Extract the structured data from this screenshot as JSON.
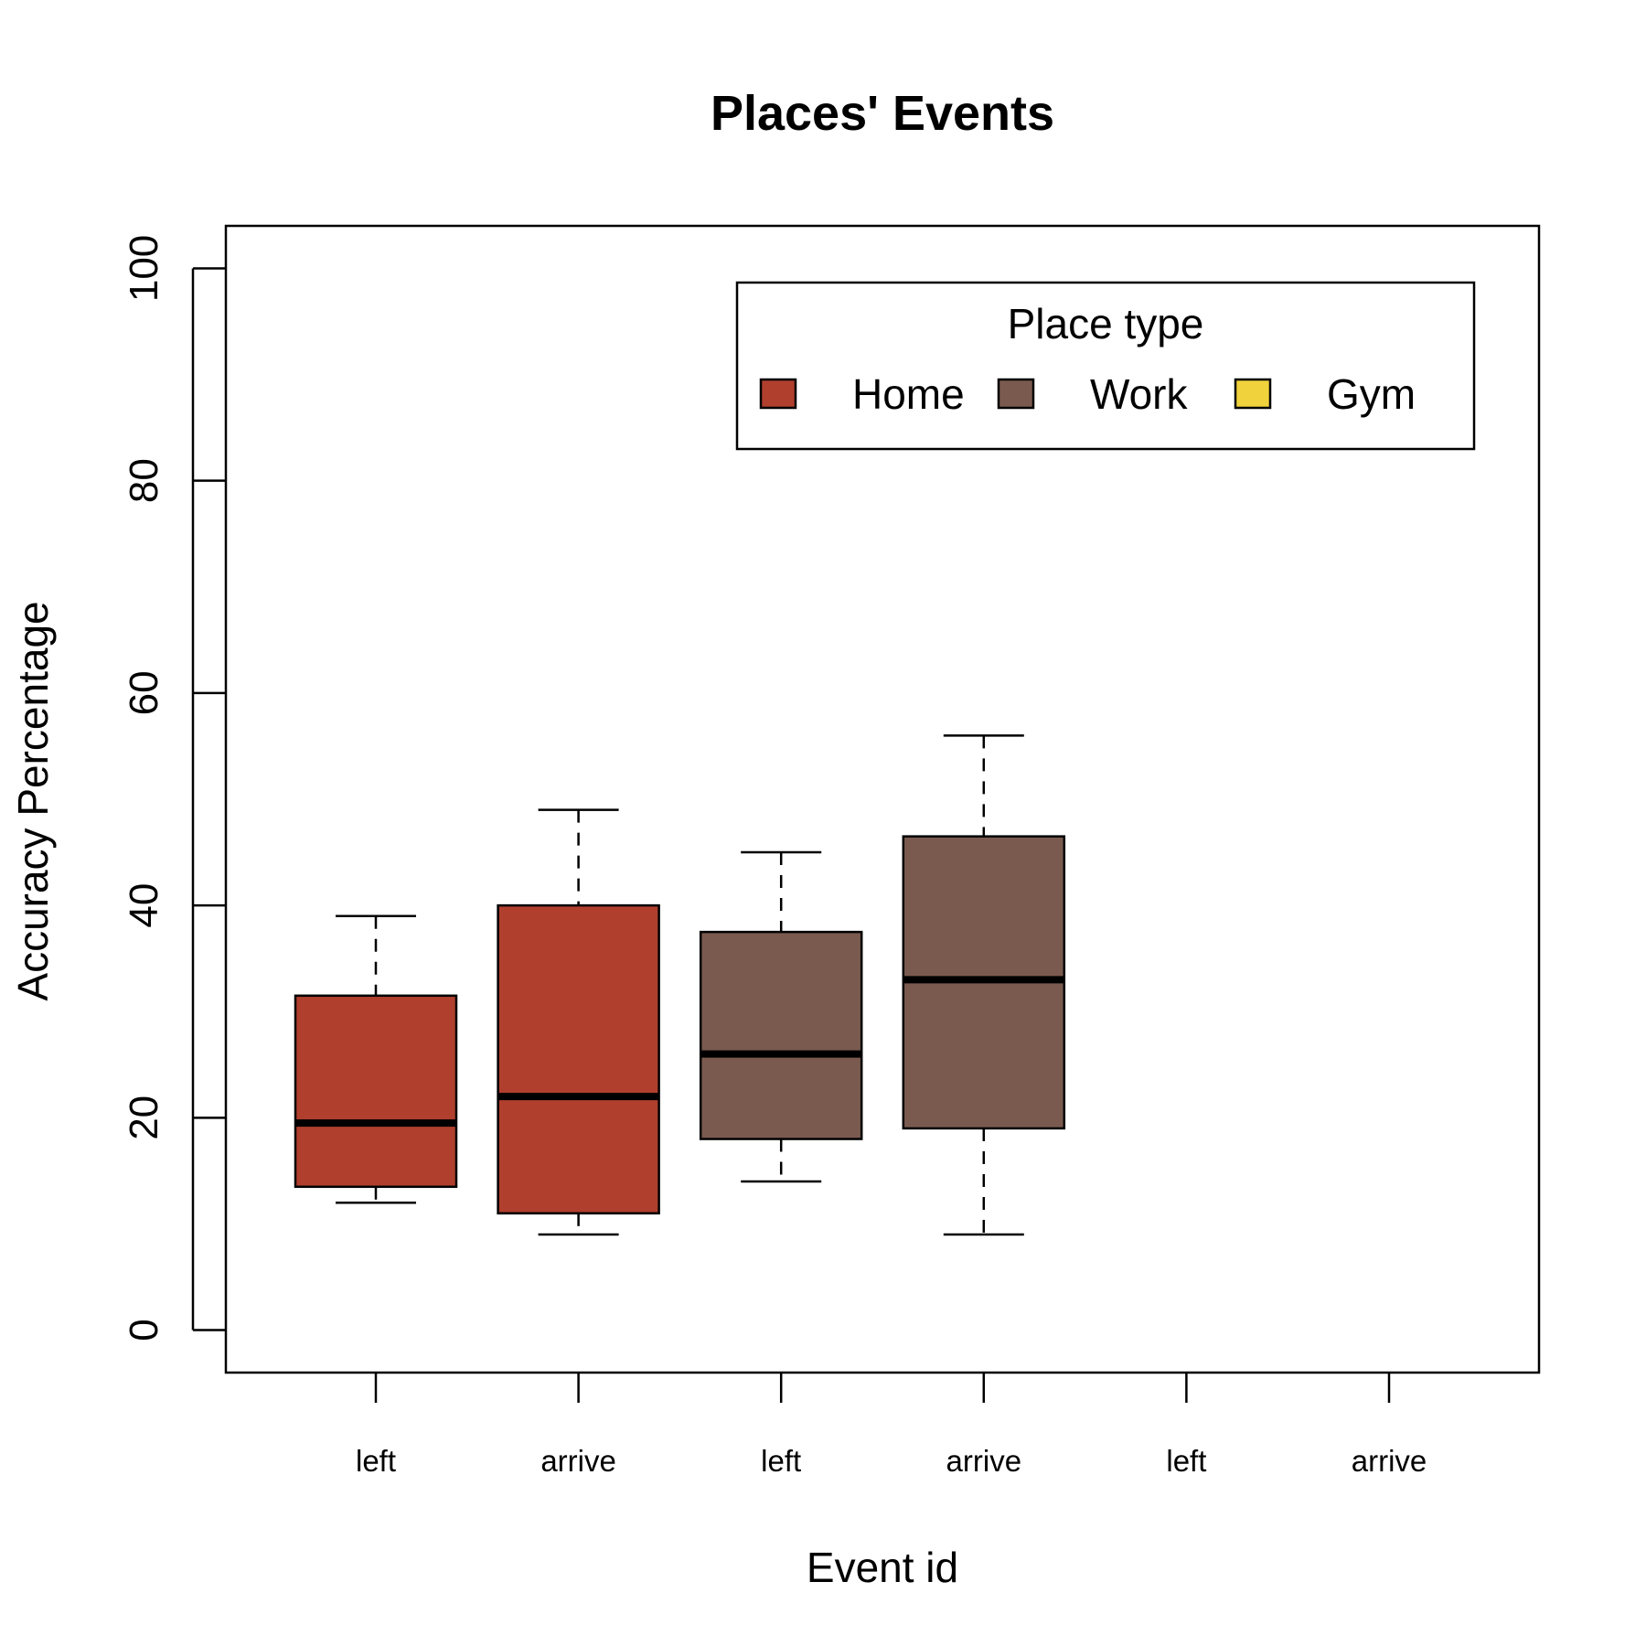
{
  "chart_data": {
    "type": "box",
    "title": "Places' Events",
    "xlabel": "Event id",
    "ylabel": "Accuracy Percentage",
    "ylim": [
      -4,
      104
    ],
    "yticks": [
      0,
      20,
      40,
      60,
      80,
      100
    ],
    "categories": [
      "left",
      "arrive",
      "left",
      "arrive",
      "left",
      "arrive"
    ],
    "grid": false,
    "legend": {
      "title": "Place type",
      "placement": "top-right",
      "entries": [
        {
          "label": "Home",
          "color": "#b03f2e"
        },
        {
          "label": "Work",
          "color": "#7a5a4f"
        },
        {
          "label": "Gym",
          "color": "#f0d23c"
        }
      ]
    },
    "series": [
      {
        "name": "Home",
        "color": "#b03f2e",
        "boxes": [
          {
            "category_index": 0,
            "min": 12,
            "q1": 13.5,
            "median": 19.5,
            "q3": 31.5,
            "max": 39
          },
          {
            "category_index": 1,
            "min": 9,
            "q1": 11,
            "median": 22,
            "q3": 40,
            "max": 49
          }
        ]
      },
      {
        "name": "Work",
        "color": "#7a5a4f",
        "boxes": [
          {
            "category_index": 2,
            "min": 14,
            "q1": 18,
            "median": 26,
            "q3": 37.5,
            "max": 45
          },
          {
            "category_index": 3,
            "min": 9,
            "q1": 19,
            "median": 33,
            "q3": 46.5,
            "max": 56
          }
        ]
      },
      {
        "name": "Gym",
        "color": "#f0d23c",
        "boxes": []
      }
    ]
  }
}
